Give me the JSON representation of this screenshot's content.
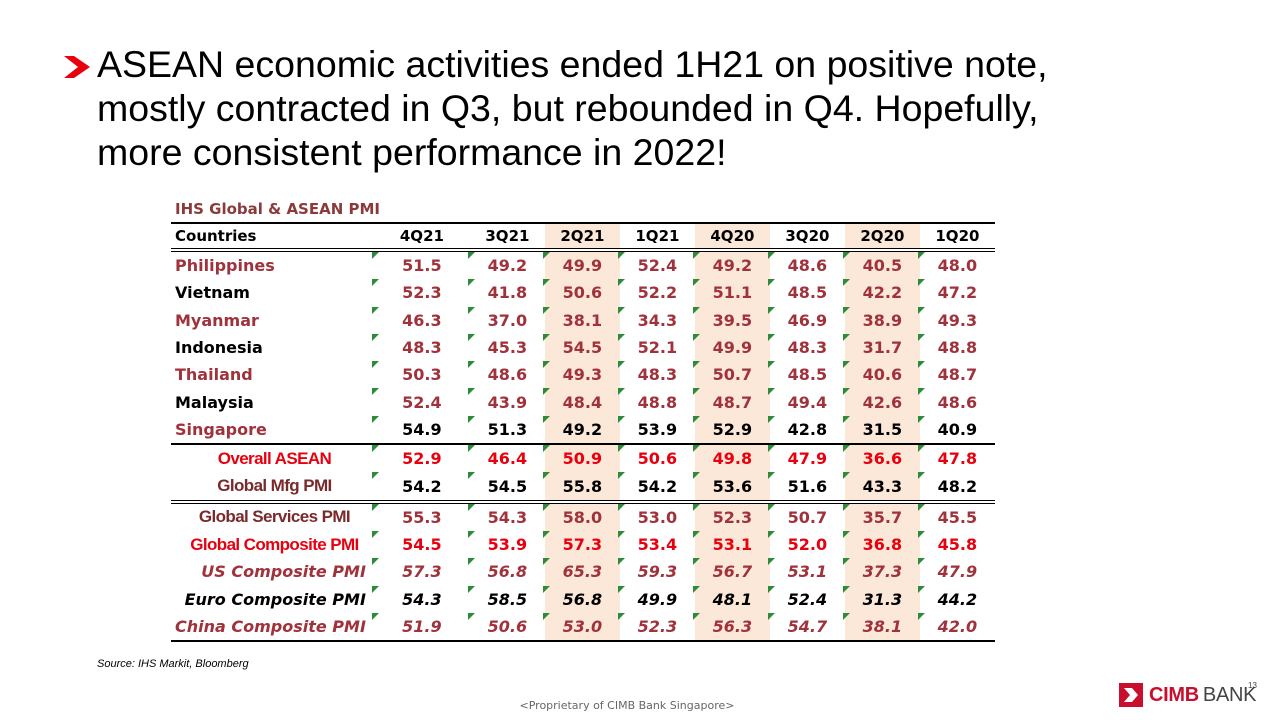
{
  "headline": {
    "lines": [
      "ASEAN economic activities ended 1H21 on positive note,",
      "mostly contracted in Q3, but rebounded in Q4. Hopefully,",
      "more consistent performance in 2022!"
    ]
  },
  "table": {
    "title": "IHS Global & ASEAN PMI",
    "columns": [
      "Countries",
      "4Q21",
      "3Q21",
      "2Q21",
      "1Q21",
      "4Q20",
      "3Q20",
      "2Q20",
      "1Q20"
    ],
    "rows": [
      {
        "label": "Philippines",
        "values": [
          "51.5",
          "49.2",
          "49.9",
          "52.4",
          "49.2",
          "48.6",
          "40.5",
          "48.0"
        ]
      },
      {
        "label": "Vietnam",
        "values": [
          "52.3",
          "41.8",
          "50.6",
          "52.2",
          "51.1",
          "48.5",
          "42.2",
          "47.2"
        ]
      },
      {
        "label": "Myanmar",
        "values": [
          "46.3",
          "37.0",
          "38.1",
          "34.3",
          "39.5",
          "46.9",
          "38.9",
          "49.3"
        ]
      },
      {
        "label": "Indonesia",
        "values": [
          "48.3",
          "45.3",
          "54.5",
          "52.1",
          "49.9",
          "48.3",
          "31.7",
          "48.8"
        ]
      },
      {
        "label": "Thailand",
        "values": [
          "50.3",
          "48.6",
          "49.3",
          "48.3",
          "50.7",
          "48.5",
          "40.6",
          "48.7"
        ]
      },
      {
        "label": "Malaysia",
        "values": [
          "52.4",
          "43.9",
          "48.4",
          "48.8",
          "48.7",
          "49.4",
          "42.6",
          "48.6"
        ]
      },
      {
        "label": "Singapore",
        "values": [
          "54.9",
          "51.3",
          "49.2",
          "53.9",
          "52.9",
          "42.8",
          "31.5",
          "40.9"
        ]
      },
      {
        "label": "Overall ASEAN",
        "values": [
          "52.9",
          "46.4",
          "50.9",
          "50.6",
          "49.8",
          "47.9",
          "36.6",
          "47.8"
        ]
      },
      {
        "label": "Global Mfg PMI",
        "values": [
          "54.2",
          "54.5",
          "55.8",
          "54.2",
          "53.6",
          "51.6",
          "43.3",
          "48.2"
        ]
      },
      {
        "label": "Global Services PMI",
        "values": [
          "55.3",
          "54.3",
          "58.0",
          "53.0",
          "52.3",
          "50.7",
          "35.7",
          "45.5"
        ]
      },
      {
        "label": "Global Composite PMI",
        "values": [
          "54.5",
          "53.9",
          "57.3",
          "53.4",
          "53.1",
          "52.0",
          "36.8",
          "45.8"
        ]
      },
      {
        "label": "US Composite PMI",
        "values": [
          "57.3",
          "56.8",
          "65.3",
          "59.3",
          "56.7",
          "53.1",
          "37.3",
          "47.9"
        ]
      },
      {
        "label": "Euro Composite PMI",
        "values": [
          "54.3",
          "58.5",
          "56.8",
          "49.9",
          "48.1",
          "52.4",
          "31.3",
          "44.2"
        ]
      },
      {
        "label": "China Composite PMI",
        "values": [
          "51.9",
          "50.6",
          "53.0",
          "52.3",
          "56.3",
          "54.7",
          "38.1",
          "42.0"
        ]
      }
    ]
  },
  "source": "Source: IHS Markit, Bloomberg",
  "footer": "<Proprietary of CIMB Bank Singapore>",
  "page_number": "13",
  "logo": {
    "brand": "CIMB",
    "suffix": "BANK"
  },
  "colors": {
    "accent_red": "#e8000f",
    "maroon": "#a0323c",
    "shade": "#fce8d8",
    "indicator_green": "#2e8b3a"
  }
}
